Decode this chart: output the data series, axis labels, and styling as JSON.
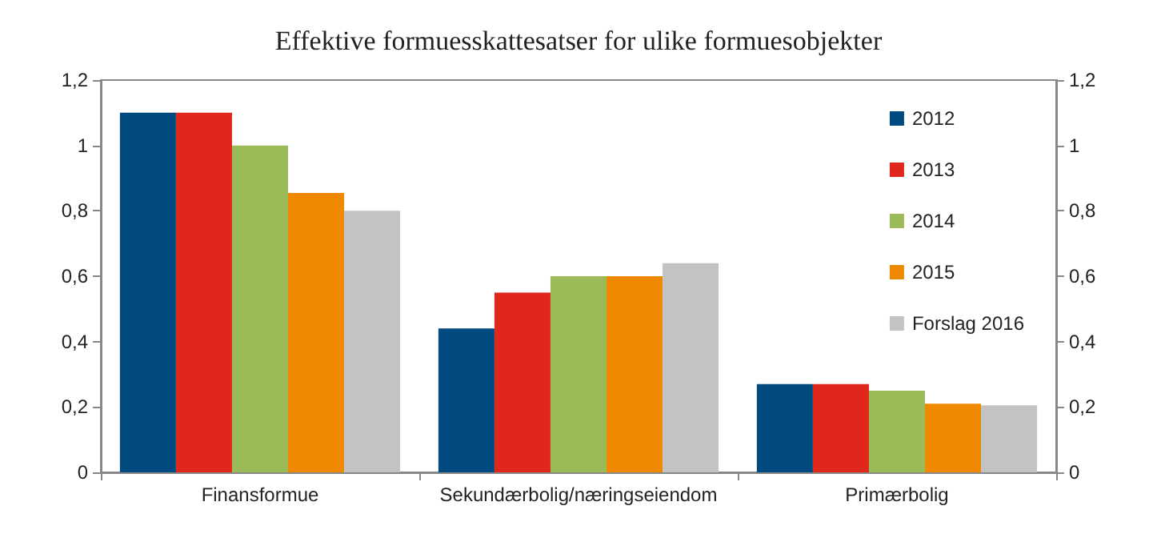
{
  "chart_data": {
    "type": "bar",
    "title": "Effektive formuesskattesatser for ulike formuesobjekter",
    "categories": [
      "Finansformue",
      "Sekundærbolig/næringseiendom",
      "Primærbolig"
    ],
    "series": [
      {
        "name": "2012",
        "color": "#004a80",
        "values": [
          1.1,
          0.44,
          0.27
        ]
      },
      {
        "name": "2013",
        "color": "#e0271b",
        "values": [
          1.1,
          0.55,
          0.27
        ]
      },
      {
        "name": "2014",
        "color": "#9bbb59",
        "values": [
          1.0,
          0.6,
          0.25
        ]
      },
      {
        "name": "2015",
        "color": "#ef8a00",
        "values": [
          0.855,
          0.6,
          0.21
        ]
      },
      {
        "name": "Forslag 2016",
        "color": "#c3c3c3",
        "values": [
          0.8,
          0.64,
          0.205
        ]
      }
    ],
    "ylim": [
      0,
      1.2
    ],
    "yticks": [
      0,
      {
        "value": 0.2,
        "label": "0,2"
      },
      {
        "value": 0.4,
        "label": "0,4"
      },
      {
        "value": 0.6,
        "label": "0,6"
      },
      {
        "value": 0.8,
        "label": "0,8"
      },
      1,
      {
        "value": 1.2,
        "label": "1,2"
      }
    ],
    "y2lim": [
      0,
      1.2
    ],
    "y2ticks": [
      0,
      {
        "value": 0.2,
        "label": "0,2"
      },
      {
        "value": 0.4,
        "label": "0,4"
      },
      {
        "value": 0.6,
        "label": "0,6"
      },
      {
        "value": 0.8,
        "label": "0,8"
      },
      1,
      {
        "value": 1.2,
        "label": "1,2"
      }
    ],
    "legend": "top right"
  }
}
